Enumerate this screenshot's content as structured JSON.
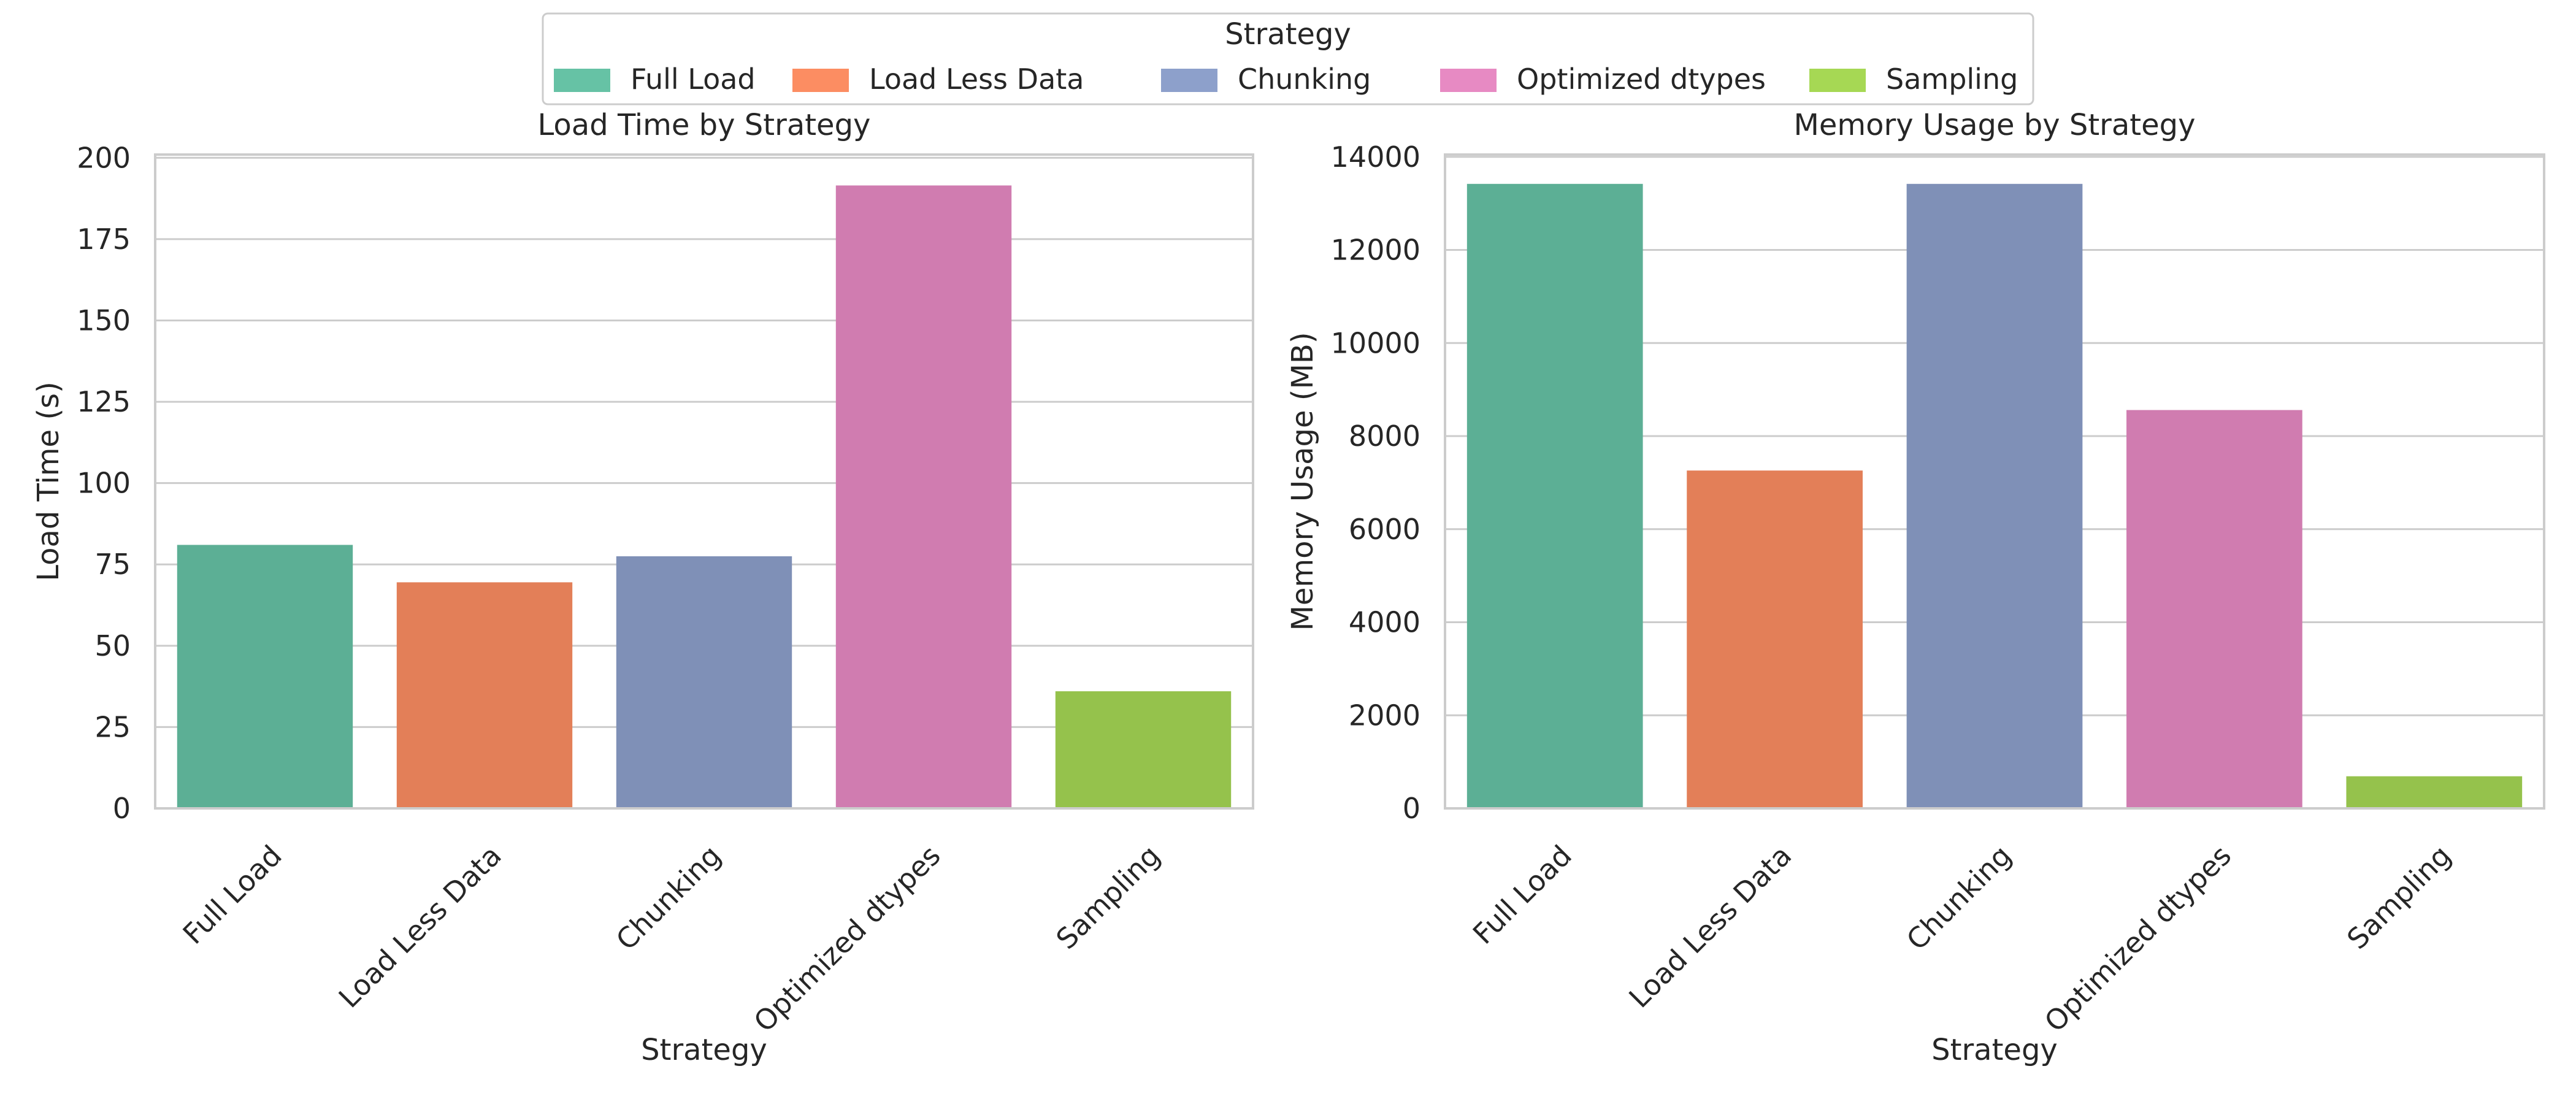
{
  "legend": {
    "title": "Strategy",
    "placement": "top-center",
    "entries": [
      "Full Load",
      "Load Less Data",
      "Chunking",
      "Optimized dtypes",
      "Sampling"
    ]
  },
  "colors": [
    "#66c2a5",
    "#fc8d62",
    "#8da0cb",
    "#e78ac3",
    "#a6d854"
  ],
  "chart_data": [
    {
      "type": "bar",
      "title": "Load Time by Strategy",
      "xlabel": "Strategy",
      "ylabel": "Load Time (s)",
      "categories": [
        "Full Load",
        "Load Less Data",
        "Chunking",
        "Optimized dtypes",
        "Sampling"
      ],
      "values": [
        81,
        69.5,
        77.5,
        191.5,
        36
      ],
      "ylim": [
        0,
        201
      ],
      "yticks": [
        0,
        25,
        50,
        75,
        100,
        125,
        150,
        175,
        200
      ],
      "grid": true
    },
    {
      "type": "bar",
      "title": "Memory Usage by Strategy",
      "xlabel": "Strategy",
      "ylabel": "Memory Usage (MB)",
      "categories": [
        "Full Load",
        "Load Less Data",
        "Chunking",
        "Optimized dtypes",
        "Sampling"
      ],
      "values": [
        13420,
        7260,
        13420,
        8560,
        690
      ],
      "ylim": [
        0,
        14050
      ],
      "yticks": [
        0,
        2000,
        4000,
        6000,
        8000,
        10000,
        12000,
        14000
      ],
      "grid": true
    }
  ]
}
